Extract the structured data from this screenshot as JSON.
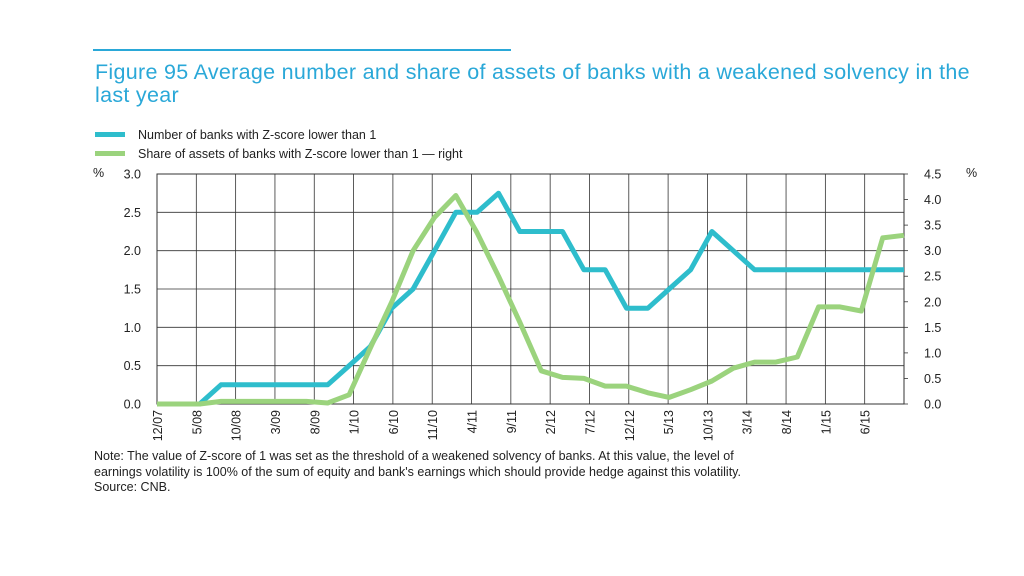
{
  "title": "Figure 95 Average number and share of assets of banks with a weakened solvency in the last year",
  "unit_left": "%",
  "unit_right": "%",
  "note_lines": [
    "Note: The value of Z-score of 1 was set as the threshold of a weakened solvency of banks. At this value, the level of",
    "earnings volatility is 100% of the sum of equity and bank's earnings which should provide hedge against this volatility.",
    "Source: CNB."
  ],
  "colors": {
    "series_left": "#2ebdcc",
    "series_right": "#9bd37d",
    "title": "#2aa8d8",
    "grid": "#222222"
  },
  "chart_data": {
    "type": "line",
    "left_axis": {
      "min": 0,
      "max": 3.0,
      "ticks": [
        "0.0",
        "0.5",
        "1.0",
        "1.5",
        "2.0",
        "2.5",
        "3.0"
      ]
    },
    "right_axis": {
      "min": 0,
      "max": 4.5,
      "ticks": [
        "0.0",
        "0.5",
        "1.0",
        "1.5",
        "2.0",
        "2.5",
        "3.0",
        "3.5",
        "4.0",
        "4.5"
      ]
    },
    "x_tick_labels": [
      "12/07",
      "5/08",
      "10/08",
      "3/09",
      "8/09",
      "1/10",
      "6/10",
      "11/10",
      "4/11",
      "9/11",
      "2/12",
      "7/12",
      "12/12",
      "5/13",
      "10/13",
      "3/14",
      "8/14",
      "1/15",
      "6/15"
    ],
    "n_points": 36,
    "series": [
      {
        "name": "Number of banks with Z-score lower than 1",
        "axis": "left",
        "values": [
          0,
          0,
          0,
          0.25,
          0.25,
          0.25,
          0.25,
          0.25,
          0.25,
          0.5,
          0.75,
          1.25,
          1.5,
          2.0,
          2.5,
          2.5,
          2.75,
          2.25,
          2.25,
          2.25,
          1.75,
          1.75,
          1.25,
          1.25,
          1.5,
          1.75,
          2.25,
          2.0,
          1.75,
          1.75,
          1.75,
          1.75,
          1.75,
          1.75,
          1.75,
          1.75
        ]
      },
      {
        "name": "Share of assets of banks with Z-score lower than 1 — right",
        "axis": "right",
        "values": [
          0,
          0,
          0,
          0.05,
          0.05,
          0.05,
          0.05,
          0.05,
          0.02,
          0.18,
          1.1,
          2.0,
          3.0,
          3.65,
          4.08,
          3.35,
          2.5,
          1.6,
          0.65,
          0.52,
          0.5,
          0.35,
          0.35,
          0.22,
          0.13,
          0.28,
          0.45,
          0.7,
          0.82,
          0.82,
          0.92,
          1.9,
          1.9,
          1.82,
          3.25,
          3.3
        ]
      }
    ]
  }
}
